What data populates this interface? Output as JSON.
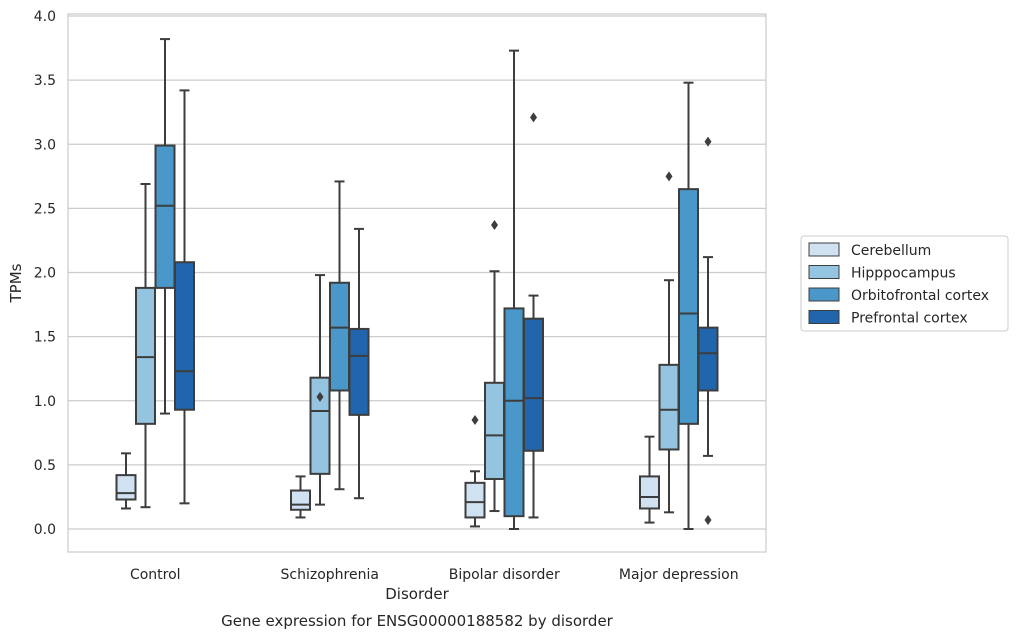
{
  "chart_data": {
    "type": "box",
    "title": "",
    "caption": "Gene expression for ENSG00000188582 by disorder",
    "xlabel": "Disorder",
    "ylabel": "TPMs",
    "ylim": [
      -0.18,
      4.02
    ],
    "yticks": [
      0.0,
      0.5,
      1.0,
      1.5,
      2.0,
      2.5,
      3.0,
      3.5,
      4.0
    ],
    "ytick_labels": [
      "0.0",
      "0.5",
      "1.0",
      "1.5",
      "2.0",
      "2.5",
      "3.0",
      "3.5",
      "4.0"
    ],
    "grid": "horizontal",
    "legend_position": "right",
    "categories": [
      "Control",
      "Schizophrenia",
      "Bipolar disorder",
      "Major depression"
    ],
    "series": [
      {
        "name": "Cerebellum",
        "color": "#d0e1f2",
        "boxes": [
          {
            "whislo": 0.16,
            "q1": 0.23,
            "med": 0.28,
            "q3": 0.42,
            "whishi": 0.59,
            "fliers": []
          },
          {
            "whislo": 0.09,
            "q1": 0.15,
            "med": 0.19,
            "q3": 0.3,
            "whishi": 0.41,
            "fliers": []
          },
          {
            "whislo": 0.02,
            "q1": 0.09,
            "med": 0.21,
            "q3": 0.36,
            "whishi": 0.45,
            "fliers": [
              0.85
            ]
          },
          {
            "whislo": 0.05,
            "q1": 0.16,
            "med": 0.25,
            "q3": 0.41,
            "whishi": 0.72,
            "fliers": []
          }
        ]
      },
      {
        "name": "Hipppocampus",
        "color": "#94c4df",
        "boxes": [
          {
            "whislo": 0.17,
            "q1": 0.82,
            "med": 1.34,
            "q3": 1.88,
            "whishi": 2.69,
            "fliers": []
          },
          {
            "whislo": 0.19,
            "q1": 0.43,
            "med": 0.92,
            "q3": 1.18,
            "whishi": 1.98,
            "fliers": [
              1.03
            ]
          },
          {
            "whislo": 0.14,
            "q1": 0.39,
            "med": 0.73,
            "q3": 1.14,
            "whishi": 2.01,
            "fliers": [
              2.37
            ]
          },
          {
            "whislo": 0.13,
            "q1": 0.62,
            "med": 0.93,
            "q3": 1.28,
            "whishi": 1.94,
            "fliers": [
              2.75
            ]
          }
        ]
      },
      {
        "name": "Orbitofrontal cortex",
        "color": "#4a98c9",
        "boxes": [
          {
            "whislo": 0.9,
            "q1": 1.88,
            "med": 2.52,
            "q3": 2.99,
            "whishi": 3.82,
            "fliers": []
          },
          {
            "whislo": 0.31,
            "q1": 1.08,
            "med": 1.57,
            "q3": 1.92,
            "whishi": 2.71,
            "fliers": []
          },
          {
            "whislo": 0.0,
            "q1": 0.1,
            "med": 1.0,
            "q3": 1.72,
            "whishi": 3.73,
            "fliers": []
          },
          {
            "whislo": 0.0,
            "q1": 0.82,
            "med": 1.68,
            "q3": 2.65,
            "whishi": 3.48,
            "fliers": []
          }
        ]
      },
      {
        "name": "Prefrontal cortex",
        "color": "#2166ac",
        "boxes": [
          {
            "whislo": 0.2,
            "q1": 0.93,
            "med": 1.23,
            "q3": 2.08,
            "whishi": 3.42,
            "fliers": []
          },
          {
            "whislo": 0.24,
            "q1": 0.89,
            "med": 1.35,
            "q3": 1.56,
            "whishi": 2.34,
            "fliers": []
          },
          {
            "whislo": 0.09,
            "q1": 0.61,
            "med": 1.02,
            "q3": 1.64,
            "whishi": 1.82,
            "fliers": [
              3.21
            ]
          },
          {
            "whislo": 0.57,
            "q1": 1.08,
            "med": 1.37,
            "q3": 1.57,
            "whishi": 2.12,
            "fliers": [
              3.02,
              0.07
            ]
          }
        ]
      }
    ]
  }
}
